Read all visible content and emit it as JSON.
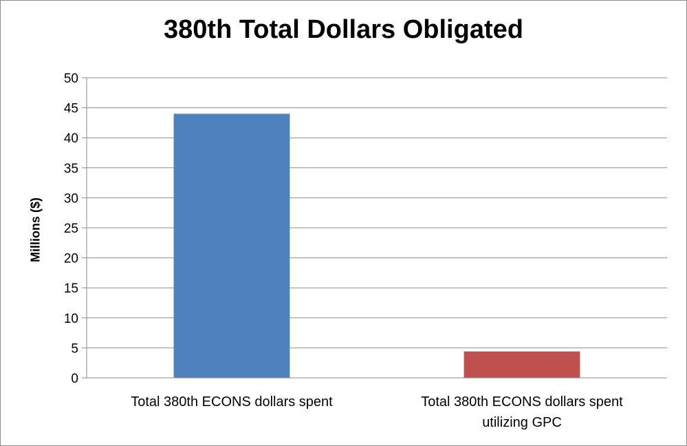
{
  "chart_data": {
    "type": "bar",
    "title": "380th Total Dollars Obligated",
    "xlabel": "",
    "ylabel": "Millions ($)",
    "ylim": [
      0,
      50
    ],
    "yticks": [
      0,
      5,
      10,
      15,
      20,
      25,
      30,
      35,
      40,
      45,
      50
    ],
    "grid": true,
    "categories": [
      [
        "Total 380th ECONS dollars spent"
      ],
      [
        "Total 380th ECONS dollars spent",
        "utilizing GPC"
      ]
    ],
    "values": [
      44.0,
      4.4
    ],
    "colors": [
      "#4f81bd",
      "#c0504d"
    ]
  }
}
